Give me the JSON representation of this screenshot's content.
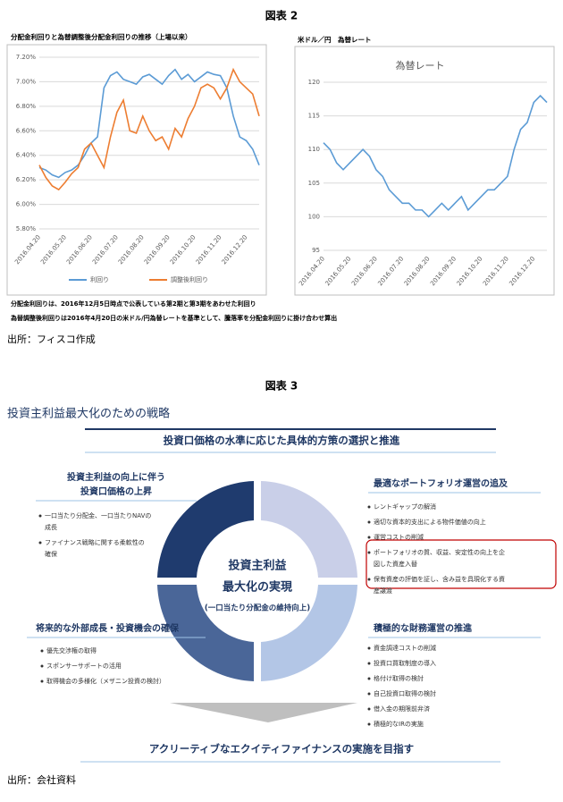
{
  "figure2": {
    "title": "図表 2",
    "notes": [
      "分配金利回りは、2016年12月5日時点で公表している第2期と第3期をあわせた利回り",
      "為替調整後利回りは2016年4月20日の米ドル/円為替レートを基準として、騰落率を分配金利回りに掛け合わせ算出"
    ],
    "source": "出所：フィスコ作成"
  },
  "chart_data": [
    {
      "type": "line",
      "caption": "分配金利回りと為替調整後分配金利回りの推移（上場以来）",
      "categories": [
        "2016.04.20",
        null,
        null,
        null,
        "2016.05.20",
        null,
        null,
        null,
        "2016.06.20",
        null,
        null,
        null,
        "2016.07.20",
        null,
        null,
        null,
        "2016.08.20",
        null,
        null,
        null,
        "2016.09.20",
        null,
        null,
        null,
        "2016.10.20",
        null,
        null,
        null,
        "2016.11.20",
        null,
        null,
        null,
        "2016.12.20",
        null,
        null
      ],
      "series": [
        {
          "name": "利回り",
          "color": "#5b9bd5",
          "values": [
            6.3,
            6.28,
            6.24,
            6.22,
            6.26,
            6.28,
            6.32,
            6.4,
            6.5,
            6.55,
            6.95,
            7.05,
            7.08,
            7.02,
            7.0,
            6.98,
            7.04,
            7.06,
            7.02,
            6.98,
            7.05,
            7.1,
            7.02,
            7.06,
            7.0,
            7.04,
            7.08,
            7.06,
            7.05,
            6.95,
            6.72,
            6.55,
            6.52,
            6.45,
            6.32
          ]
        },
        {
          "name": "調整後利回り",
          "color": "#ed7d31",
          "values": [
            6.32,
            6.22,
            6.15,
            6.12,
            6.18,
            6.25,
            6.3,
            6.45,
            6.5,
            6.4,
            6.3,
            6.55,
            6.75,
            6.85,
            6.6,
            6.58,
            6.72,
            6.6,
            6.52,
            6.55,
            6.45,
            6.62,
            6.55,
            6.7,
            6.8,
            6.95,
            6.98,
            6.95,
            6.86,
            6.95,
            7.1,
            7.0,
            6.95,
            6.9,
            6.72
          ]
        }
      ],
      "ylim": [
        5.8,
        7.2
      ],
      "yticks": [
        {
          "value": 5.8,
          "label": "5.80%"
        },
        {
          "value": 6.0,
          "label": "6.00%"
        },
        {
          "value": 6.2,
          "label": "6.20%"
        },
        {
          "value": 6.4,
          "label": "6.40%"
        },
        {
          "value": 6.6,
          "label": "6.60%"
        },
        {
          "value": 6.8,
          "label": "6.80%"
        },
        {
          "value": 7.0,
          "label": "7.00%"
        },
        {
          "value": 7.2,
          "label": "7.20%"
        }
      ],
      "grid": true
    },
    {
      "type": "line",
      "caption": "米ドル／円　為替レート",
      "title": "為替レート",
      "categories": [
        "2016.04.20",
        null,
        null,
        null,
        "2016.05.20",
        null,
        null,
        null,
        "2016.06.20",
        null,
        null,
        null,
        "2016.07.20",
        null,
        null,
        null,
        "2016.08.20",
        null,
        null,
        null,
        "2016.09.20",
        null,
        null,
        null,
        "2016.10.20",
        null,
        null,
        null,
        "2016.11.20",
        null,
        null,
        null,
        "2016.12.20",
        null,
        null
      ],
      "color": "#5b9bd5",
      "values": [
        111,
        110,
        108,
        107,
        108,
        109,
        110,
        109,
        107,
        106,
        104,
        103,
        102,
        102,
        101,
        101,
        100,
        101,
        102,
        101,
        102,
        103,
        101,
        102,
        103,
        104,
        104,
        105,
        106,
        110,
        113,
        114,
        117,
        118,
        117
      ],
      "ylim": [
        95,
        120
      ],
      "yticks": [
        95,
        100,
        105,
        110,
        115,
        120
      ],
      "grid": true
    }
  ],
  "figure3": {
    "title": "図表 3",
    "heading": "投資主利益最大化のための戦略",
    "banner": "投資口価格の水準に応じた具体的方策の選択と推進",
    "center": [
      "投資主利益",
      "最大化の実現",
      "(一口当たり分配金の維持向上)"
    ],
    "quadrants": [
      {
        "title": [
          "投資主利益の向上に伴う",
          "投資口価格の上昇"
        ],
        "bullets": [
          [
            "一口当たり分配金、一口当たりNAVの",
            "成長"
          ],
          [
            "ファイナンス戦略に関する柔軟性の",
            "確保"
          ]
        ]
      },
      {
        "title": [
          "最適なポートフォリオ運営の追及"
        ],
        "bullets": [
          [
            "レントギャップの解消"
          ],
          [
            "適切な資本的支出による物件価値の向上"
          ],
          [
            "運営コストの削減"
          ],
          [
            "ポートフォリオの質、収益、安定性の向上を企",
            "図した資産入替"
          ],
          [
            "保有資産の評価を証し、含み益を具現化する資",
            "産譲渡"
          ]
        ]
      },
      {
        "title": [
          "将来的な外部成長・投資機会の確保"
        ],
        "bullets": [
          [
            "優先交渉権の取得"
          ],
          [
            "スポンサーサポートの活用"
          ],
          [
            "取得機会の多様化（メザニン投資の検討）"
          ]
        ]
      },
      {
        "title": [
          "積極的な財務運営の推進"
        ],
        "bullets": [
          [
            "資金調達コストの削減"
          ],
          [
            "投資口買取制度の導入"
          ],
          [
            "格付け取得の検討"
          ],
          [
            "自己投資口取得の検討"
          ],
          [
            "借入金の期限前弁済"
          ],
          [
            "積極的なIRの実施"
          ]
        ]
      }
    ],
    "footer": "アクリーティブなエクイティファイナンスの実施を目指す",
    "source": "出所：会社資料"
  }
}
